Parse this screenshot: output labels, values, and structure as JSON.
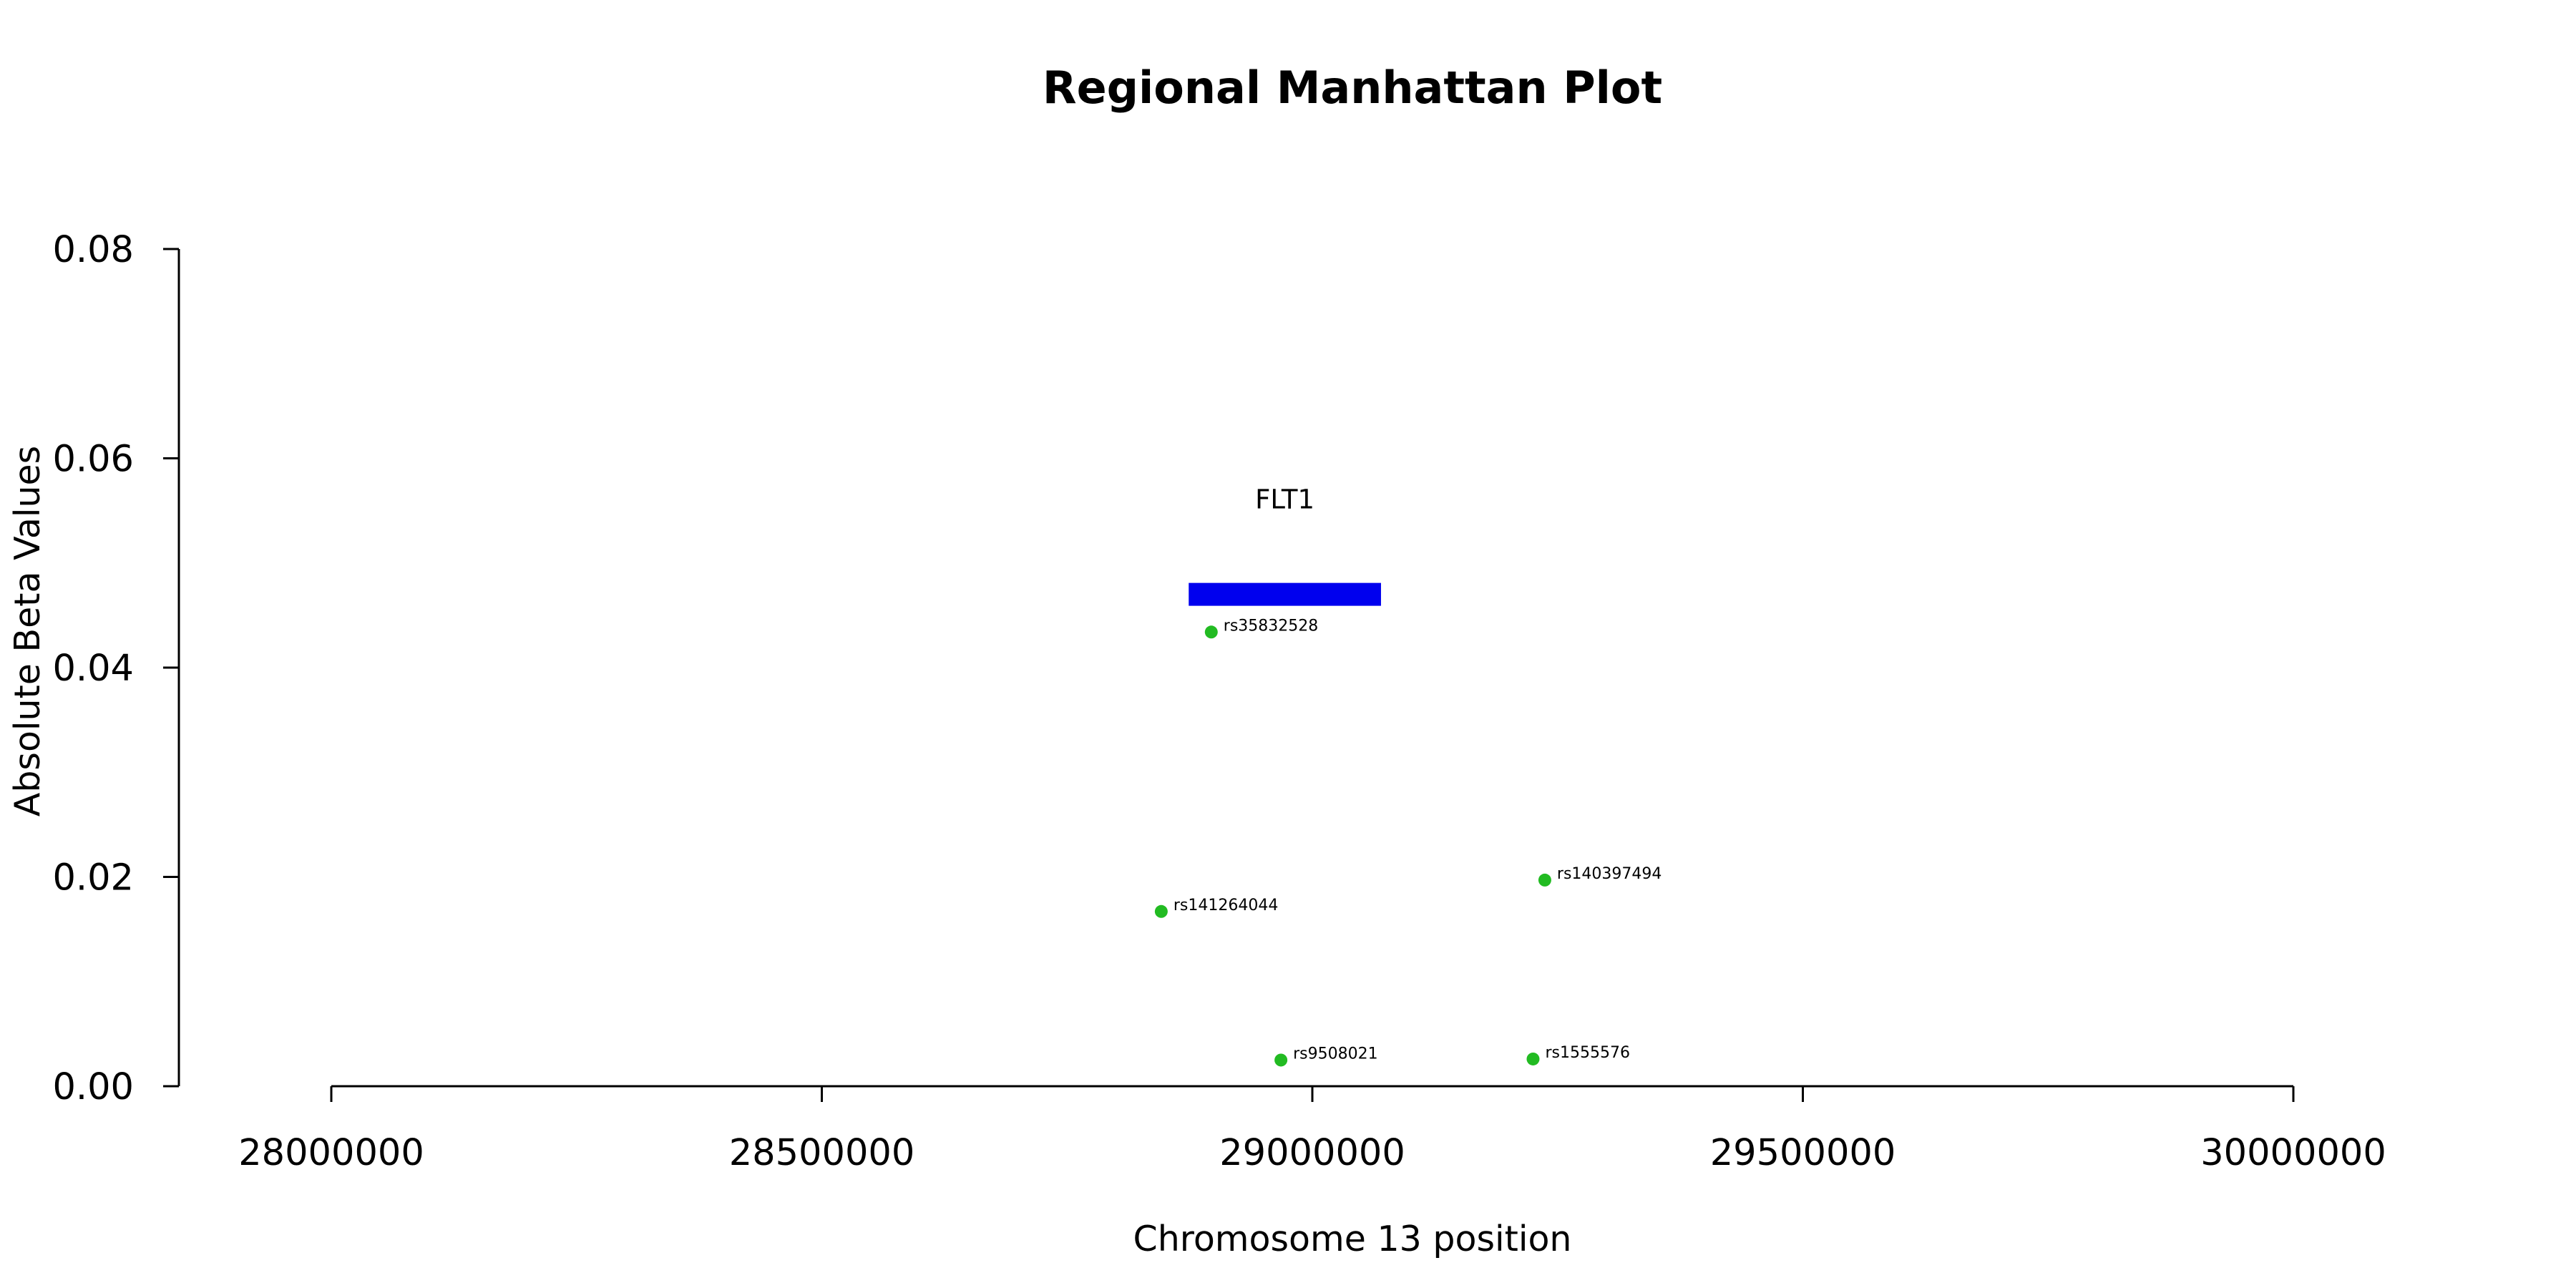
{
  "chart_data": {
    "type": "scatter",
    "title": "Regional Manhattan Plot",
    "xlabel": "Chromosome 13 position",
    "ylabel": "Absolute Beta Values",
    "xlim": [
      28000000,
      30000000
    ],
    "ylim": [
      0,
      0.08
    ],
    "x_ticks": [
      {
        "value": 28000000,
        "label": "28000000"
      },
      {
        "value": 28500000,
        "label": "28500000"
      },
      {
        "value": 29000000,
        "label": "29000000"
      },
      {
        "value": 29500000,
        "label": "29500000"
      },
      {
        "value": 30000000,
        "label": "30000000"
      }
    ],
    "y_ticks": [
      {
        "value": 0.0,
        "label": "0.00"
      },
      {
        "value": 0.02,
        "label": "0.02"
      },
      {
        "value": 0.04,
        "label": "0.04"
      },
      {
        "value": 0.06,
        "label": "0.06"
      },
      {
        "value": 0.08,
        "label": "0.08"
      }
    ],
    "grid": false,
    "points": [
      {
        "id": "rs35832528",
        "x": 28897000,
        "y": 0.0434
      },
      {
        "id": "rs141264044",
        "x": 28846000,
        "y": 0.0167
      },
      {
        "id": "rs140397494",
        "x": 29237000,
        "y": 0.0197
      },
      {
        "id": "rs9508021",
        "x": 28968000,
        "y": 0.0025
      },
      {
        "id": "rs1555576",
        "x": 29225000,
        "y": 0.0026
      }
    ],
    "point_color": "#22BB22",
    "genes": [
      {
        "name": "FLT1",
        "start": 28874000,
        "end": 29070000,
        "y": 0.047,
        "color": "#0000EE"
      }
    ]
  }
}
